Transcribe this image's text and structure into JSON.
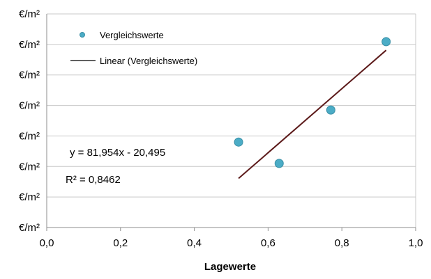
{
  "chart_data": {
    "type": "scatter",
    "xlabel": "Lagewerte",
    "ylabel": "",
    "x_ticks": [
      "0,0",
      "0,2",
      "0,4",
      "0,6",
      "0,8",
      "1,0"
    ],
    "xlim": [
      0,
      1
    ],
    "y_ticks": [
      "€/m²",
      "€/m²",
      "€/m²",
      "€/m²",
      "€/m²",
      "€/m²",
      "€/m²",
      "€/m²"
    ],
    "y_tick_count": 8,
    "grid": true,
    "legend": {
      "position": "top-left",
      "entries": [
        "Vergleichswerte",
        "Linear (Vergleichswerte)"
      ]
    },
    "series": [
      {
        "name": "Vergleichswerte",
        "type": "scatter",
        "color": "#4bacc6",
        "points": [
          {
            "x": 0.52,
            "y": 0.4
          },
          {
            "x": 0.63,
            "y": 0.3
          },
          {
            "x": 0.77,
            "y": 0.55
          },
          {
            "x": 0.92,
            "y": 0.87
          }
        ]
      },
      {
        "name": "Linear (Vergleichswerte)",
        "type": "line",
        "color": "#5c1a1a",
        "points": [
          {
            "x": 0.52,
            "y": 0.23
          },
          {
            "x": 0.92,
            "y": 0.83
          }
        ]
      }
    ],
    "annotations": {
      "equation": "y = 81,954x - 20,495",
      "r_squared": "R² = 0,8462"
    }
  }
}
